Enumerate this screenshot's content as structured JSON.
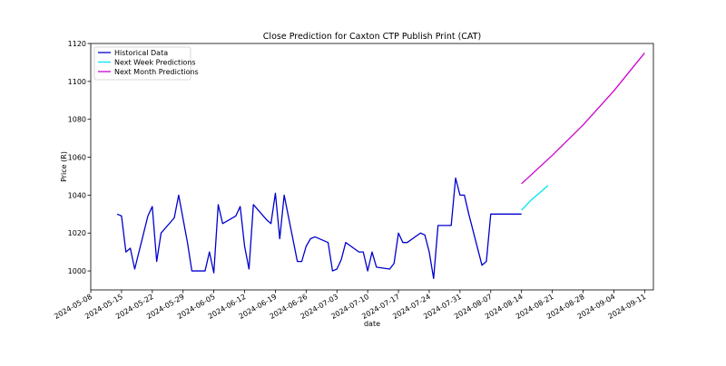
{
  "chart_data": {
    "type": "line",
    "title": "Close Prediction for Caxton CTP Publish Print (CAT)",
    "xlabel": "date",
    "ylabel": "Price (R)",
    "x_is_date": true,
    "xlim": [
      "2024-05-08",
      "2024-09-13"
    ],
    "ylim": [
      990,
      1120
    ],
    "xticks": [
      "2024-05-08",
      "2024-05-15",
      "2024-05-22",
      "2024-05-29",
      "2024-06-05",
      "2024-06-12",
      "2024-06-19",
      "2024-06-26",
      "2024-07-03",
      "2024-07-10",
      "2024-07-17",
      "2024-07-24",
      "2024-07-31",
      "2024-08-07",
      "2024-08-14",
      "2024-08-21",
      "2024-08-28",
      "2024-09-04",
      "2024-09-11"
    ],
    "yticks": [
      1000,
      1020,
      1040,
      1060,
      1080,
      1100,
      1120
    ],
    "grid": false,
    "legend_position": "top-left",
    "series": [
      {
        "name": "Historical Data",
        "color": "#0000cd",
        "x": [
          "2024-05-14",
          "2024-05-15",
          "2024-05-16",
          "2024-05-17",
          "2024-05-18",
          "2024-05-21",
          "2024-05-22",
          "2024-05-23",
          "2024-05-24",
          "2024-05-27",
          "2024-05-28",
          "2024-05-30",
          "2024-05-31",
          "2024-06-03",
          "2024-06-04",
          "2024-06-05",
          "2024-06-06",
          "2024-06-07",
          "2024-06-10",
          "2024-06-11",
          "2024-06-12",
          "2024-06-13",
          "2024-06-14",
          "2024-06-17",
          "2024-06-18",
          "2024-06-19",
          "2024-06-20",
          "2024-06-21",
          "2024-06-24",
          "2024-06-25",
          "2024-06-26",
          "2024-06-27",
          "2024-06-28",
          "2024-07-01",
          "2024-07-02",
          "2024-07-03",
          "2024-07-04",
          "2024-07-05",
          "2024-07-08",
          "2024-07-09",
          "2024-07-10",
          "2024-07-11",
          "2024-07-12",
          "2024-07-15",
          "2024-07-16",
          "2024-07-17",
          "2024-07-18",
          "2024-07-19",
          "2024-07-22",
          "2024-07-23",
          "2024-07-24",
          "2024-07-25",
          "2024-07-26",
          "2024-07-29",
          "2024-07-30",
          "2024-07-31",
          "2024-08-01",
          "2024-08-02",
          "2024-08-05",
          "2024-08-06",
          "2024-08-07",
          "2024-08-08",
          "2024-08-09",
          "2024-08-12",
          "2024-08-13",
          "2024-08-14"
        ],
        "y": [
          1030,
          1029,
          1010,
          1012,
          1001,
          1029,
          1034,
          1005,
          1020,
          1028,
          1040,
          1015,
          1000,
          1000,
          1010,
          999,
          1035,
          1025,
          1029,
          1034,
          1013,
          1001,
          1035,
          1027,
          1025,
          1041,
          1017,
          1040,
          1005,
          1005,
          1013,
          1017,
          1018,
          1015,
          1000,
          1001,
          1006,
          1015,
          1010,
          1010,
          1000,
          1010,
          1002,
          1001,
          1004,
          1020,
          1015,
          1015,
          1020,
          1019,
          1010,
          996,
          1024,
          1024,
          1049,
          1040,
          1040,
          1030,
          1003,
          1005,
          1030,
          1030,
          1030,
          1030,
          1030,
          1030
        ]
      },
      {
        "name": "Next Week Predictions",
        "color": "#00e5ee",
        "x": [
          "2024-08-14",
          "2024-08-15",
          "2024-08-16",
          "2024-08-17",
          "2024-08-18",
          "2024-08-19",
          "2024-08-20"
        ],
        "y": [
          1032,
          1034.5,
          1037,
          1039,
          1041,
          1043,
          1045
        ]
      },
      {
        "name": "Next Month Predictions",
        "color": "#cc00cc",
        "x": [
          "2024-08-14",
          "2024-08-21",
          "2024-08-28",
          "2024-09-04",
          "2024-09-11"
        ],
        "y": [
          1046,
          1061,
          1077,
          1095,
          1115
        ]
      }
    ]
  }
}
